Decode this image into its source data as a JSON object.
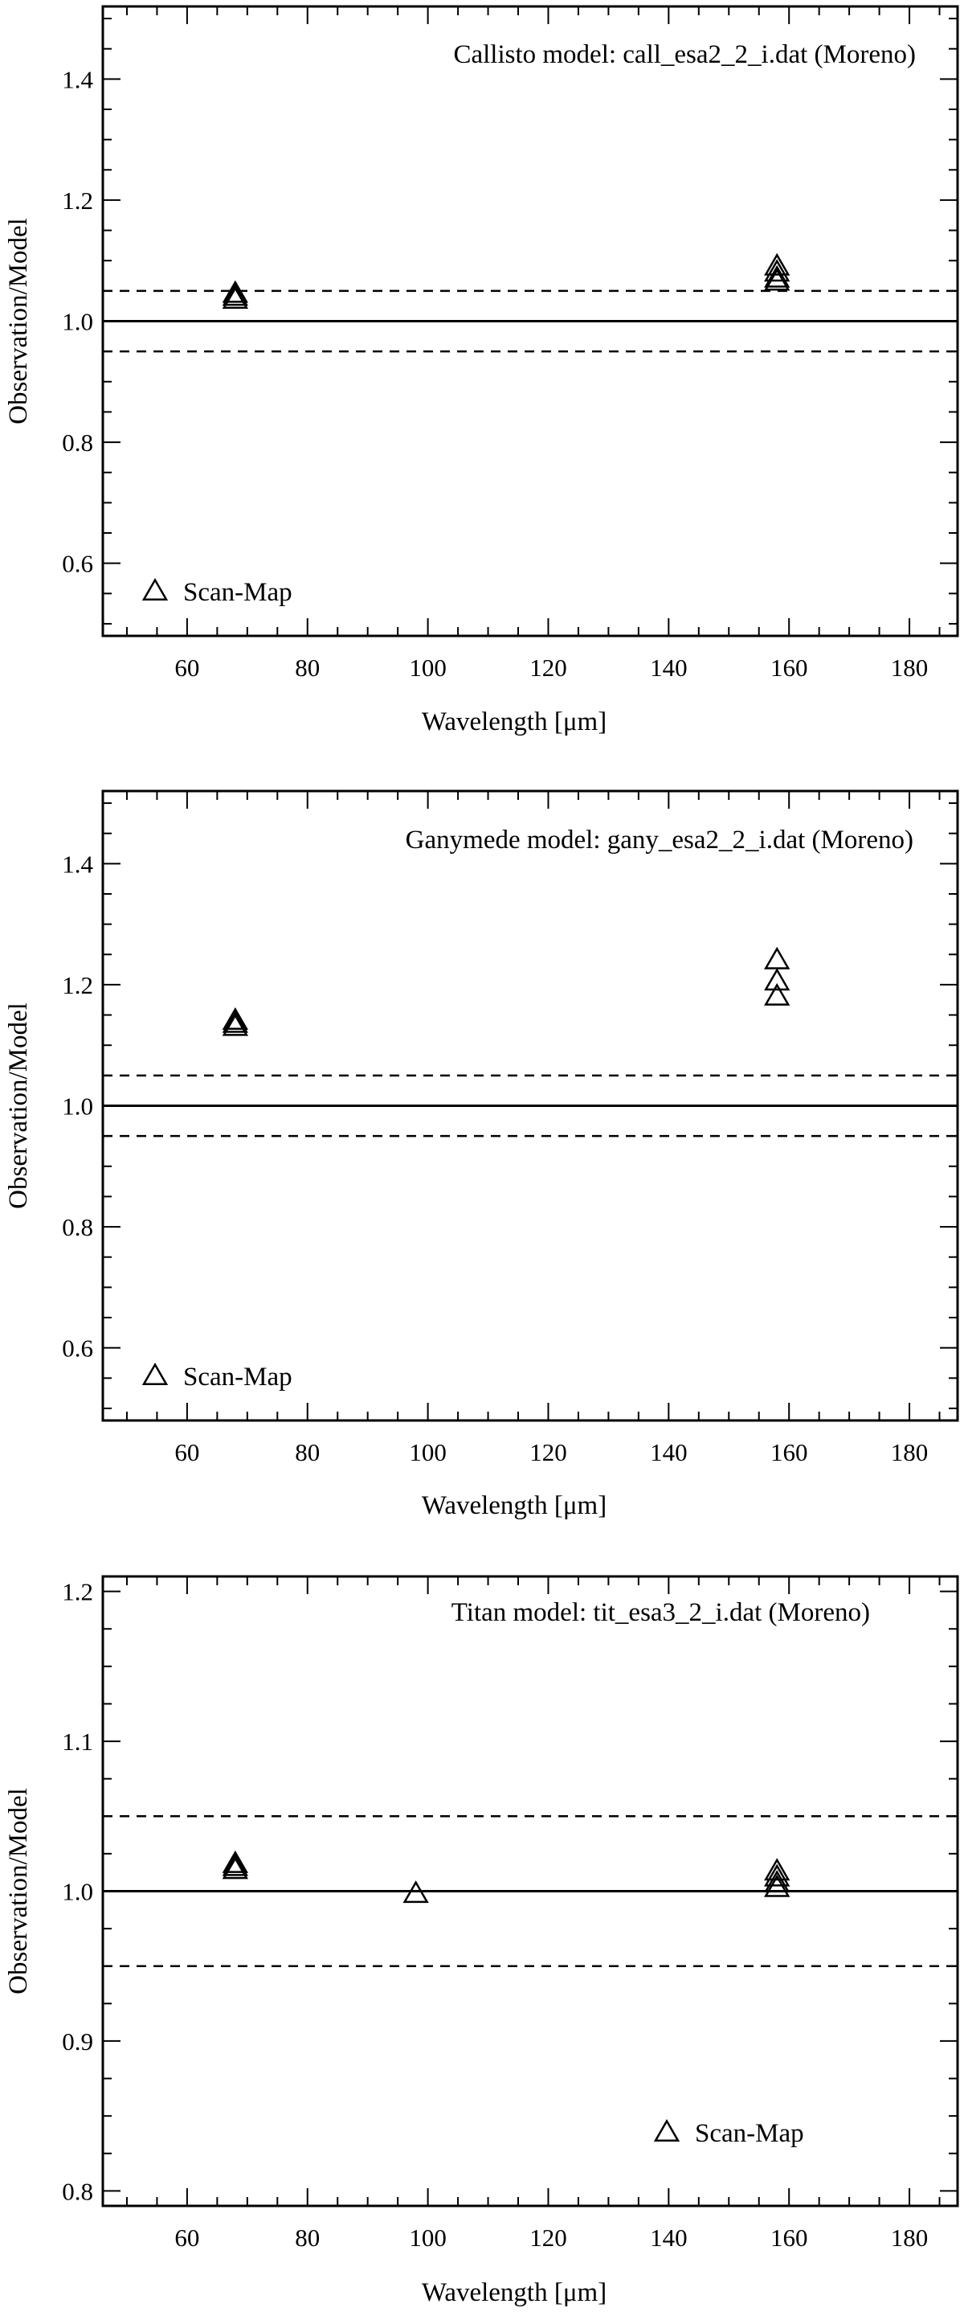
{
  "chart_data": [
    {
      "type": "scatter",
      "title": "Callisto model: call_esa2_2_i.dat (Moreno)",
      "xlabel": "Wavelength [μm]",
      "ylabel": "Observation/Model",
      "xlim": [
        46,
        188
      ],
      "ylim": [
        0.48,
        1.52
      ],
      "x_ticks": [
        60,
        80,
        100,
        120,
        140,
        160,
        180
      ],
      "x_tick_labels": [
        "60",
        "80",
        "100",
        "120",
        "140",
        "160",
        "180"
      ],
      "y_ticks": [
        0.6,
        0.8,
        1.0,
        1.2,
        1.4
      ],
      "y_tick_labels": [
        "0.6",
        "0.8",
        "1.0",
        "1.2",
        "1.4"
      ],
      "reference_lines": [
        {
          "y": 1.0,
          "style": "solid"
        },
        {
          "y": 1.05,
          "style": "dashed"
        },
        {
          "y": 0.95,
          "style": "dashed"
        }
      ],
      "series": [
        {
          "name": "Scan-Map",
          "marker": "triangle",
          "points": [
            [
              68,
              1.045
            ],
            [
              68,
              1.04
            ],
            [
              68,
              1.035
            ],
            [
              158,
              1.09
            ],
            [
              158,
              1.08
            ],
            [
              158,
              1.07
            ],
            [
              158,
              1.065
            ]
          ]
        }
      ],
      "legend": {
        "position": "bottom-left"
      }
    },
    {
      "type": "scatter",
      "title": "Ganymede model: gany_esa2_2_i.dat (Moreno)",
      "xlabel": "Wavelength [μm]",
      "ylabel": "Observation/Model",
      "xlim": [
        46,
        188
      ],
      "ylim": [
        0.48,
        1.52
      ],
      "x_ticks": [
        60,
        80,
        100,
        120,
        140,
        160,
        180
      ],
      "x_tick_labels": [
        "60",
        "80",
        "100",
        "120",
        "140",
        "160",
        "180"
      ],
      "y_ticks": [
        0.6,
        0.8,
        1.0,
        1.2,
        1.4
      ],
      "y_tick_labels": [
        "0.6",
        "0.8",
        "1.0",
        "1.2",
        "1.4"
      ],
      "reference_lines": [
        {
          "y": 1.0,
          "style": "solid"
        },
        {
          "y": 1.05,
          "style": "dashed"
        },
        {
          "y": 0.95,
          "style": "dashed"
        }
      ],
      "series": [
        {
          "name": "Scan-Map",
          "marker": "triangle",
          "points": [
            [
              68,
              1.14
            ],
            [
              68,
              1.135
            ],
            [
              68,
              1.13
            ],
            [
              158,
              1.24
            ],
            [
              158,
              1.205
            ],
            [
              158,
              1.18
            ]
          ]
        }
      ],
      "legend": {
        "position": "bottom-left"
      }
    },
    {
      "type": "scatter",
      "title": "Titan model: tit_esa3_2_i.dat (Moreno)",
      "xlabel": "Wavelength [μm]",
      "ylabel": "Observation/Model",
      "xlim": [
        46,
        188
      ],
      "ylim": [
        0.79,
        1.21
      ],
      "x_ticks": [
        60,
        80,
        100,
        120,
        140,
        160,
        180
      ],
      "x_tick_labels": [
        "60",
        "80",
        "100",
        "120",
        "140",
        "160",
        "180"
      ],
      "y_ticks": [
        0.8,
        0.9,
        1.0,
        1.1,
        1.2
      ],
      "y_tick_labels": [
        "0.8",
        "0.9",
        "1.0",
        "1.1",
        "1.2"
      ],
      "reference_lines": [
        {
          "y": 1.0,
          "style": "solid"
        },
        {
          "y": 1.05,
          "style": "dashed"
        },
        {
          "y": 0.95,
          "style": "dashed"
        }
      ],
      "series": [
        {
          "name": "Scan-Map",
          "marker": "triangle",
          "points": [
            [
              68,
              1.018
            ],
            [
              68,
              1.016
            ],
            [
              68,
              1.014
            ],
            [
              98,
              0.998
            ],
            [
              158,
              1.013
            ],
            [
              158,
              1.009
            ],
            [
              158,
              1.005
            ],
            [
              158,
              1.002
            ]
          ]
        }
      ],
      "legend": {
        "position": "bottom-right"
      }
    }
  ]
}
